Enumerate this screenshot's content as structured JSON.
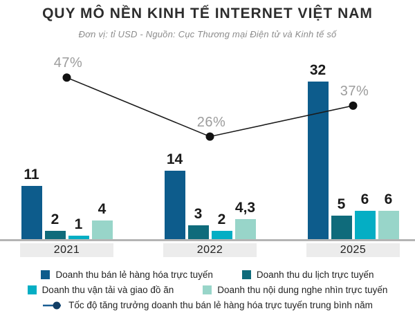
{
  "header": {
    "title": "QUY MÔ NỀN KINH TẾ INTERNET VIỆT NAM",
    "subtitle": "Đơn vị: tỉ USD  -  Nguồn: Cục Thương mại Điện tử và Kinh tế số"
  },
  "colors": {
    "title_text": "#2d2d2d",
    "subtitle_text": "#8c8c8c",
    "value_label": "#1a1a1a",
    "axis_line": "#b4b4b4",
    "year_band_bg": "#ececec",
    "growth_line": "#1a1a1a",
    "growth_dot": "#111111",
    "growth_label": "#9c9c9c",
    "legend_text": "#222222",
    "legend_line": "#1a5e93",
    "legend_dot": "#123f66"
  },
  "chart_data": {
    "type": "bar",
    "title": "QUY MÔ NỀN KINH TẾ INTERNET VIỆT NAM",
    "subtitle": "Đơn vị: tỉ USD  -  Nguồn: Cục Thương mại Điện tử và Kinh tế số",
    "categories": [
      "2021",
      "2022",
      "2025"
    ],
    "series": [
      {
        "name": "Doanh thu bán lẻ hàng hóa trực tuyến",
        "color": "#0d5c8c",
        "values": [
          11,
          14,
          32
        ],
        "labels": [
          "11",
          "14",
          "32"
        ]
      },
      {
        "name": "Doanh thu du lịch trực tuyến",
        "color": "#0f6b7b",
        "values": [
          2,
          3,
          5
        ],
        "labels": [
          "2",
          "3",
          "5"
        ]
      },
      {
        "name": "Doanh thu vận tải và giao đồ ăn",
        "color": "#04aec4",
        "values": [
          1,
          2,
          6
        ],
        "labels": [
          "1",
          "2",
          "6"
        ]
      },
      {
        "name": "Doanh thu nội dung nghe nhìn trực tuyến",
        "color": "#98d5c9",
        "values": [
          4,
          4.3,
          6
        ],
        "labels": [
          "4",
          "4,3",
          "6"
        ]
      }
    ],
    "line_series": {
      "name": "Tốc độ tăng trưởng doanh thu bán lẻ hàng hóa trực tuyến trung bình năm",
      "values": [
        47,
        26,
        37
      ],
      "labels": [
        "47%",
        "26%",
        "37%"
      ]
    },
    "ylim": [
      0,
      35
    ],
    "grid": false,
    "legend_position": "bottom"
  }
}
